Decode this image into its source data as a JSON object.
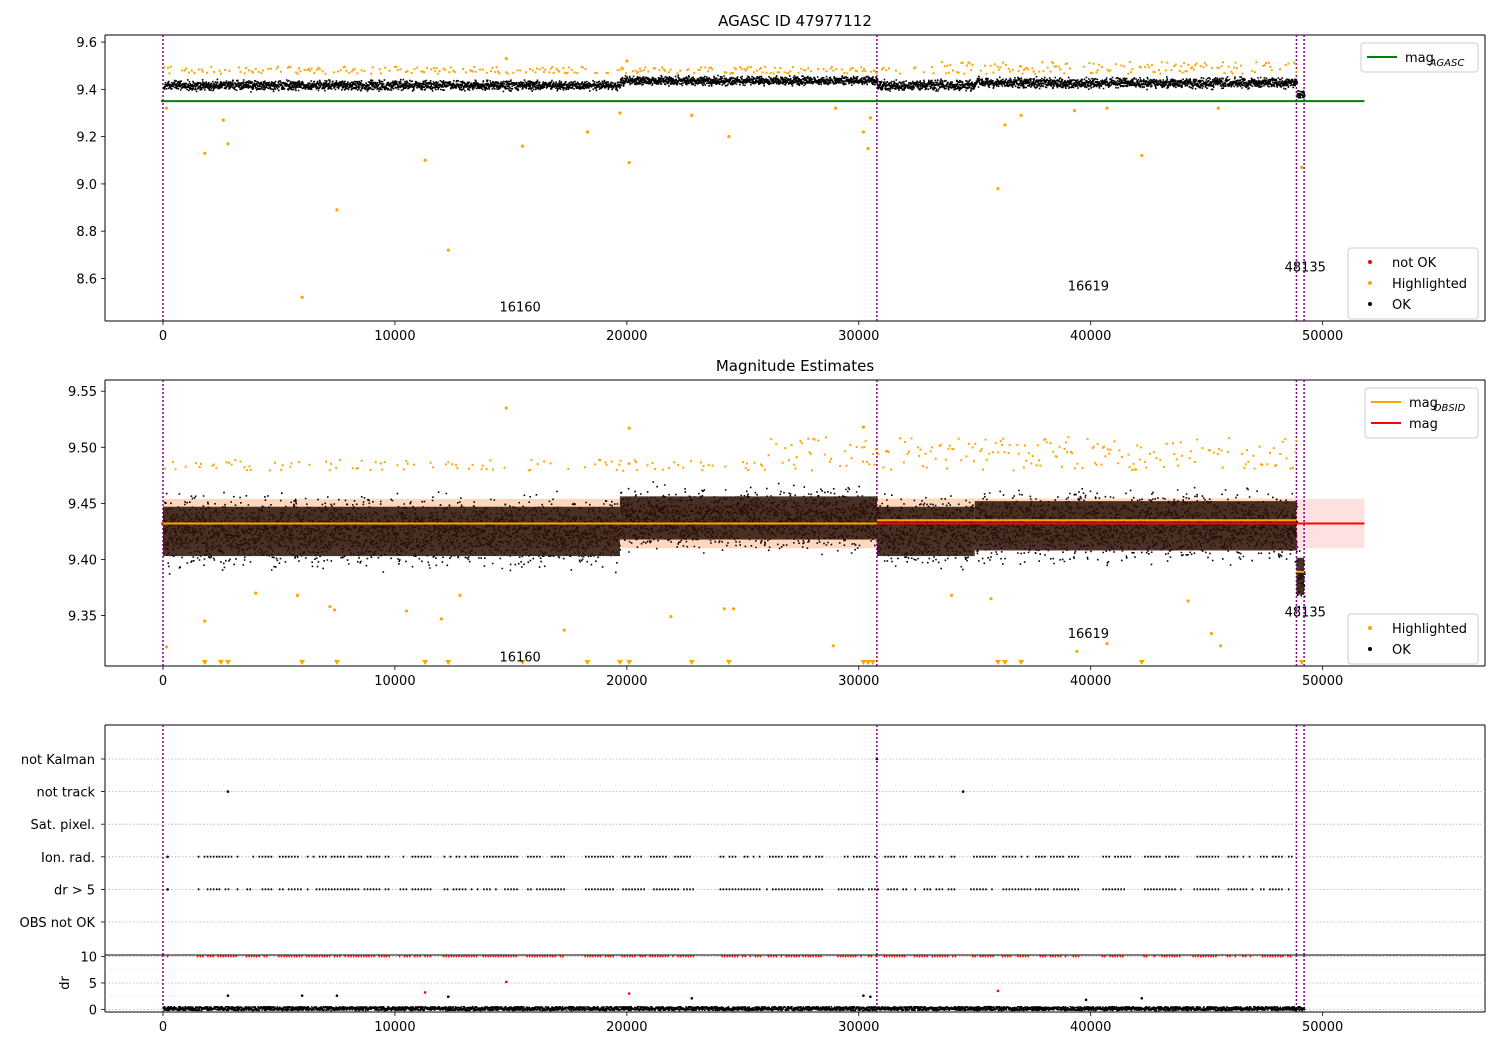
{
  "figure": {
    "colors": {
      "ok": "#000000",
      "highlighted": "#ffa500",
      "not_ok": "#ff0000",
      "agasc_line": "#008000",
      "mag_line": "#ff0000",
      "mag_obsid_line": "#ffa500",
      "obsid_boundary": "#800080",
      "band_fill": "#ffcccc"
    }
  },
  "chart_data": [
    {
      "id": "agasc",
      "type": "scatter",
      "title": "AGASC ID 47977112",
      "xlabel": "",
      "ylabel": "",
      "xlim": [
        -2500,
        57000
      ],
      "ylim": [
        8.42,
        9.63
      ],
      "x_ticks": [
        0,
        10000,
        20000,
        30000,
        40000,
        50000
      ],
      "x_tick_labels": [
        "0",
        "10000",
        "20000",
        "30000",
        "40000",
        "50000"
      ],
      "y_ticks": [
        8.6,
        8.8,
        9.0,
        9.2,
        9.4,
        9.6
      ],
      "y_tick_labels": [
        "8.6",
        "8.8",
        "9.0",
        "9.2",
        "9.4",
        "9.6"
      ],
      "grid": false,
      "obsid_boundaries": [
        0,
        30780,
        48870,
        49200
      ],
      "obsid_labels": [
        {
          "text": "16160",
          "x": 15400,
          "y": 8.46
        },
        {
          "text": "16619",
          "x": 39900,
          "y": 8.55
        },
        {
          "text": "48135",
          "x": 49250,
          "y": 8.63
        }
      ],
      "reference_lines": [
        {
          "name": "magAGASC",
          "value": 9.35,
          "x_range": [
            0,
            51800
          ]
        }
      ],
      "ok_segments": [
        {
          "x_range": [
            0,
            19700
          ],
          "center": 9.42,
          "spread": 0.028
        },
        {
          "x_range": [
            19700,
            30780
          ],
          "center": 9.44,
          "spread": 0.026
        },
        {
          "x_range": [
            30780,
            35000
          ],
          "center": 9.42,
          "spread": 0.03
        },
        {
          "x_range": [
            35000,
            48870
          ],
          "center": 9.43,
          "spread": 0.03
        },
        {
          "x_range": [
            48870,
            49200
          ],
          "center": 9.38,
          "spread": 0.025
        }
      ],
      "highlighted_points": [
        {
          "x": 150,
          "y": 9.32
        },
        {
          "x": 1800,
          "y": 9.13
        },
        {
          "x": 2600,
          "y": 9.27
        },
        {
          "x": 2800,
          "y": 9.17
        },
        {
          "x": 6000,
          "y": 8.52
        },
        {
          "x": 7500,
          "y": 8.89
        },
        {
          "x": 11300,
          "y": 9.1
        },
        {
          "x": 12300,
          "y": 8.72
        },
        {
          "x": 14800,
          "y": 9.53
        },
        {
          "x": 15500,
          "y": 9.16
        },
        {
          "x": 18300,
          "y": 9.22
        },
        {
          "x": 19700,
          "y": 9.3
        },
        {
          "x": 20100,
          "y": 9.09
        },
        {
          "x": 22800,
          "y": 9.29
        },
        {
          "x": 24400,
          "y": 9.2
        },
        {
          "x": 29000,
          "y": 9.32
        },
        {
          "x": 30200,
          "y": 9.22
        },
        {
          "x": 30400,
          "y": 9.15
        },
        {
          "x": 30500,
          "y": 9.28
        },
        {
          "x": 36000,
          "y": 8.98
        },
        {
          "x": 36300,
          "y": 9.25
        },
        {
          "x": 37000,
          "y": 9.29
        },
        {
          "x": 39300,
          "y": 9.31
        },
        {
          "x": 40700,
          "y": 9.32
        },
        {
          "x": 42200,
          "y": 9.12
        },
        {
          "x": 45500,
          "y": 9.32
        },
        {
          "x": 49100,
          "y": 9.07
        },
        {
          "x": 20000,
          "y": 9.52
        }
      ],
      "highlight_cap_band": [
        9.47,
        9.52
      ],
      "legends": [
        {
          "position": "upper-right",
          "entries": [
            {
              "label": "mag",
              "sub": "AGASC",
              "kind": "line",
              "color_key": "agasc_line"
            }
          ]
        },
        {
          "position": "lower-right",
          "entries": [
            {
              "label": "not OK",
              "kind": "dot",
              "color_key": "not_ok"
            },
            {
              "label": "Highlighted",
              "kind": "dot",
              "color_key": "highlighted"
            },
            {
              "label": "OK",
              "kind": "dot",
              "color_key": "ok"
            }
          ]
        }
      ]
    },
    {
      "id": "estimates",
      "type": "scatter",
      "title": "Magnitude Estimates",
      "xlabel": "",
      "ylabel": "",
      "xlim": [
        -2500,
        57000
      ],
      "ylim": [
        9.305,
        9.56
      ],
      "x_ticks": [
        0,
        10000,
        20000,
        30000,
        40000,
        50000
      ],
      "x_tick_labels": [
        "0",
        "10000",
        "20000",
        "30000",
        "40000",
        "50000"
      ],
      "y_ticks": [
        9.35,
        9.4,
        9.45,
        9.5,
        9.55
      ],
      "y_tick_labels": [
        "9.35",
        "9.40",
        "9.45",
        "9.50",
        "9.55"
      ],
      "grid": false,
      "obsid_boundaries": [
        0,
        30780,
        48870,
        49200
      ],
      "obsid_labels": [
        {
          "text": "16160",
          "x": 15400,
          "y": 9.309
        },
        {
          "text": "16619",
          "x": 39900,
          "y": 9.33
        },
        {
          "text": "48135",
          "x": 49250,
          "y": 9.349
        }
      ],
      "mag": {
        "value": 9.432,
        "band": [
          9.41,
          9.454
        ],
        "x_range": [
          0,
          51800
        ]
      },
      "mag_obsid": [
        {
          "obsid": "16160",
          "x_range": [
            0,
            30780
          ],
          "value": 9.432,
          "band": [
            9.41,
            9.454
          ]
        },
        {
          "obsid": "16619",
          "x_range": [
            30780,
            48870
          ],
          "value": 9.435,
          "band": [
            9.415,
            9.455
          ]
        },
        {
          "obsid": "48135",
          "x_range": [
            48870,
            49200
          ],
          "value": 9.389,
          "band": [
            9.37,
            9.4
          ]
        }
      ],
      "ok_segments": [
        {
          "x_range": [
            0,
            19700
          ],
          "center": 9.425,
          "spread": 0.04
        },
        {
          "x_range": [
            19700,
            30780
          ],
          "center": 9.437,
          "spread": 0.035
        },
        {
          "x_range": [
            30780,
            35000
          ],
          "center": 9.425,
          "spread": 0.04
        },
        {
          "x_range": [
            35000,
            48870
          ],
          "center": 9.43,
          "spread": 0.04
        },
        {
          "x_range": [
            48870,
            49200
          ],
          "center": 9.385,
          "spread": 0.03
        }
      ],
      "highlighted_points": [
        {
          "x": 150,
          "y": 9.322
        },
        {
          "x": 1800,
          "y": 9.345
        },
        {
          "x": 4000,
          "y": 9.37
        },
        {
          "x": 5800,
          "y": 9.368
        },
        {
          "x": 7200,
          "y": 9.358
        },
        {
          "x": 7400,
          "y": 9.355
        },
        {
          "x": 10500,
          "y": 9.354
        },
        {
          "x": 12000,
          "y": 9.347
        },
        {
          "x": 12800,
          "y": 9.368
        },
        {
          "x": 14800,
          "y": 9.535
        },
        {
          "x": 17300,
          "y": 9.337
        },
        {
          "x": 21900,
          "y": 9.349
        },
        {
          "x": 24200,
          "y": 9.356
        },
        {
          "x": 24600,
          "y": 9.356
        },
        {
          "x": 28900,
          "y": 9.323
        },
        {
          "x": 34000,
          "y": 9.368
        },
        {
          "x": 35700,
          "y": 9.365
        },
        {
          "x": 39400,
          "y": 9.318
        },
        {
          "x": 40700,
          "y": 9.325
        },
        {
          "x": 44200,
          "y": 9.363
        },
        {
          "x": 45200,
          "y": 9.334
        },
        {
          "x": 45600,
          "y": 9.323
        },
        {
          "x": 20100,
          "y": 9.517
        },
        {
          "x": 30200,
          "y": 9.518
        }
      ],
      "clipped_low_x": [
        1800,
        2500,
        2800,
        6000,
        7500,
        11300,
        12300,
        15500,
        18300,
        19700,
        20100,
        22800,
        24400,
        30200,
        30400,
        30600,
        36000,
        36300,
        37000,
        42200,
        49100
      ],
      "highlight_cap_band": [
        9.48,
        9.51
      ],
      "legends": [
        {
          "position": "upper-right",
          "entries": [
            {
              "label": "mag",
              "sub": "OBSID",
              "kind": "line",
              "color_key": "mag_obsid_line"
            },
            {
              "label": "mag",
              "sub": "",
              "kind": "line",
              "color_key": "mag_line"
            }
          ]
        },
        {
          "position": "lower-right",
          "entries": [
            {
              "label": "Highlighted",
              "kind": "dot",
              "color_key": "highlighted"
            },
            {
              "label": "OK",
              "kind": "dot",
              "color_key": "ok"
            }
          ]
        }
      ]
    },
    {
      "id": "flags",
      "type": "scatter",
      "title": "",
      "xlabel": "",
      "ylabel": "",
      "xlim": [
        -2500,
        57000
      ],
      "categories": [
        "not Kalman",
        "not track",
        "Sat. pixel.",
        "Ion. rad.",
        "dr > 5",
        "OBS not OK"
      ],
      "grid": true,
      "obsid_boundaries": [
        0,
        30780,
        48870,
        49200
      ],
      "points": {
        "not Kalman": [
          30780
        ],
        "not track": [
          2800,
          34500
        ],
        "Sat. pixel.": [],
        "Ion. rad.": [
          200
        ],
        "dr > 5": [
          200
        ],
        "OBS not OK": []
      },
      "dense_ranges": {
        "Ion. rad.": [
          [
            1500,
            2300
          ],
          [
            2400,
            3200
          ],
          [
            3600,
            4700
          ],
          [
            5000,
            6000
          ],
          [
            6200,
            7900
          ],
          [
            8000,
            9800
          ],
          [
            10200,
            11600
          ],
          [
            12100,
            13600
          ],
          [
            13800,
            15300
          ],
          [
            15700,
            17300
          ],
          [
            18200,
            19500
          ],
          [
            19800,
            20800
          ],
          [
            21000,
            22900
          ],
          [
            24000,
            25800
          ],
          [
            26000,
            27500
          ],
          [
            27600,
            28500
          ],
          [
            29100,
            30800
          ],
          [
            31100,
            32100
          ],
          [
            32400,
            34200
          ],
          [
            34800,
            35900
          ],
          [
            36200,
            37400
          ],
          [
            37600,
            39500
          ],
          [
            40500,
            41800
          ],
          [
            42300,
            43900
          ],
          [
            44300,
            45500
          ],
          [
            45900,
            47000
          ],
          [
            47300,
            48300
          ],
          [
            48500,
            48700
          ]
        ],
        "dr > 5": [
          [
            1500,
            2300
          ],
          [
            2400,
            3200
          ],
          [
            3600,
            4700
          ],
          [
            5000,
            6000
          ],
          [
            6200,
            7900
          ],
          [
            8000,
            9800
          ],
          [
            10200,
            11600
          ],
          [
            12100,
            13600
          ],
          [
            13800,
            15300
          ],
          [
            15700,
            17300
          ],
          [
            18200,
            19500
          ],
          [
            19800,
            20800
          ],
          [
            21000,
            22900
          ],
          [
            24000,
            25800
          ],
          [
            26000,
            27500
          ],
          [
            27600,
            28500
          ],
          [
            29100,
            30800
          ],
          [
            31100,
            32100
          ],
          [
            32400,
            34200
          ],
          [
            34800,
            35900
          ],
          [
            36200,
            37400
          ],
          [
            37600,
            39500
          ],
          [
            40500,
            41800
          ],
          [
            42300,
            43900
          ],
          [
            44300,
            45500
          ],
          [
            45900,
            47000
          ],
          [
            47300,
            48300
          ],
          [
            48500,
            48700
          ]
        ]
      }
    },
    {
      "id": "dr",
      "type": "scatter",
      "title": "",
      "xlabel": "",
      "ylabel": "dr",
      "xlim": [
        -2500,
        57000
      ],
      "ylim": [
        -0.5,
        10.3
      ],
      "x_ticks": [
        0,
        10000,
        20000,
        30000,
        40000,
        50000
      ],
      "x_tick_labels": [
        "0",
        "10000",
        "20000",
        "30000",
        "40000",
        "50000"
      ],
      "y_ticks": [
        0,
        5,
        10
      ],
      "y_tick_labels": [
        "0",
        "5",
        "10"
      ],
      "grid": true,
      "obsid_boundaries": [
        0,
        30780,
        48870,
        49200
      ],
      "baseline": {
        "value": 0.3,
        "spread": 0.35,
        "x_range": [
          0,
          49200
        ]
      },
      "clipped_value": 10,
      "clipped_ranges": [
        [
          200,
          300
        ],
        [
          1500,
          3200
        ],
        [
          3600,
          4700
        ],
        [
          5000,
          6000
        ],
        [
          6200,
          7900
        ],
        [
          8000,
          9800
        ],
        [
          10200,
          11600
        ],
        [
          12100,
          13600
        ],
        [
          13800,
          15300
        ],
        [
          15700,
          17300
        ],
        [
          18200,
          19500
        ],
        [
          19800,
          20800
        ],
        [
          21000,
          22900
        ],
        [
          24000,
          25800
        ],
        [
          26000,
          27500
        ],
        [
          27600,
          28500
        ],
        [
          29100,
          30800
        ],
        [
          31100,
          32100
        ],
        [
          32400,
          34200
        ],
        [
          34800,
          35900
        ],
        [
          36200,
          37400
        ],
        [
          37600,
          39500
        ],
        [
          40500,
          41800
        ],
        [
          42300,
          43900
        ],
        [
          44300,
          45500
        ],
        [
          45900,
          47000
        ],
        [
          47300,
          48300
        ],
        [
          48500,
          48700
        ]
      ],
      "outliers_ok": [
        {
          "x": 2800,
          "y": 2.6
        },
        {
          "x": 6000,
          "y": 2.6
        },
        {
          "x": 7500,
          "y": 2.6
        },
        {
          "x": 12300,
          "y": 2.4
        },
        {
          "x": 22800,
          "y": 2.1
        },
        {
          "x": 30200,
          "y": 2.6
        },
        {
          "x": 30500,
          "y": 2.4
        },
        {
          "x": 42200,
          "y": 2.1
        },
        {
          "x": 39800,
          "y": 1.8
        }
      ],
      "outliers_not_ok": [
        {
          "x": 11300,
          "y": 3.2
        },
        {
          "x": 14800,
          "y": 5.2
        },
        {
          "x": 20100,
          "y": 3.0
        },
        {
          "x": 36000,
          "y": 3.5
        }
      ]
    }
  ]
}
